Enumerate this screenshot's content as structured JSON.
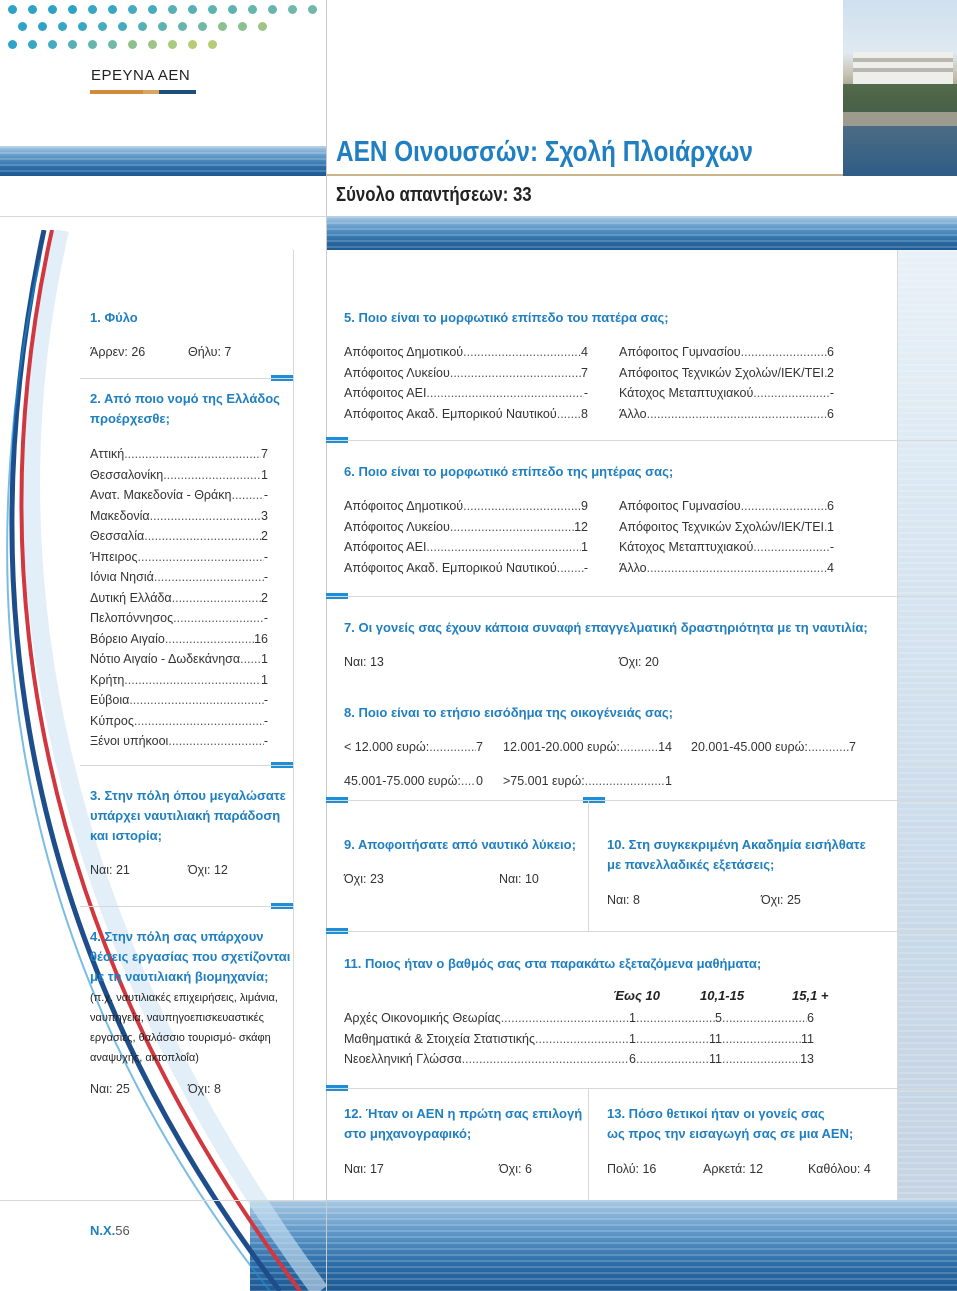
{
  "header": {
    "section_label": "ΕΡΕΥΝΑ ΑΕΝ",
    "title": "ΑΕΝ Οινουσσών: Σχολή Πλοιάρχων",
    "subtitle": "Σύνολο απαντήσεων: 33"
  },
  "footer": {
    "page_prefix": "N.",
    "page_mid": "X.",
    "page_num": "56"
  },
  "left": {
    "q1": {
      "title": "1. Φύλο",
      "male": "Άρρεν: 26",
      "female": "Θήλυ: 7"
    },
    "q2": {
      "title_line1": "2. Από ποιο νομό της Ελλάδος",
      "title_line2": "προέρχεσθε;",
      "rows": [
        {
          "label": "Αττική",
          "value": "7"
        },
        {
          "label": "Θεσσαλονίκη",
          "value": "1"
        },
        {
          "label": "Ανατ. Μακεδονία - Θράκη",
          "value": "-"
        },
        {
          "label": "Μακεδονία",
          "value": "3"
        },
        {
          "label": "Θεσσαλία",
          "value": "2"
        },
        {
          "label": "Ήπειρος",
          "value": "-"
        },
        {
          "label": "Ιόνια Νησιά",
          "value": "-"
        },
        {
          "label": "Δυτική Ελλάδα",
          "value": "2"
        },
        {
          "label": "Πελοπόννησος",
          "value": "-"
        },
        {
          "label": "Βόρειο Αιγαίο",
          "value": "16"
        },
        {
          "label": "Νότιο Αιγαίο - Δωδεκάνησα",
          "value": "1"
        },
        {
          "label": "Κρήτη",
          "value": "1"
        },
        {
          "label": "Εύβοια",
          "value": "-"
        },
        {
          "label": "Κύπρος",
          "value": "-"
        },
        {
          "label": "Ξένοι υπήκοοι",
          "value": "-"
        }
      ]
    },
    "q3": {
      "title_line1": "3. Στην πόλη όπου μεγαλώσατε",
      "title_line2": "υπάρχει ναυτιλιακή παράδοση",
      "title_line3": "και ιστορία;",
      "yes": "Ναι: 21",
      "no": "Όχι: 12"
    },
    "q4": {
      "title_line1": "4. Στην πόλη σας υπάρχουν",
      "title_line2": "θέσεις εργασίας που σχετίζονται",
      "title_line3": "με τη ναυτιλιακή βιομηχανία;",
      "note_line1": "(π.χ. ναυτιλιακές επιχειρήσεις, λιμάνια,",
      "note_line2": "ναυπηγεία, ναυπηγοεπισκευαστικές",
      "note_line3": "εργασίες, θαλάσσιο τουρισμό- σκάφη",
      "note_line4": "αναψυχής, ακτοπλοΐα)",
      "yes": "Ναι: 25",
      "no": "Όχι: 8"
    }
  },
  "right": {
    "q5": {
      "title": "5. Ποιο είναι το μορφωτικό επίπεδο του πατέρα σας;",
      "col1": [
        {
          "label": "Απόφοιτος Δημοτικού",
          "value": "4"
        },
        {
          "label": "Απόφοιτος Λυκείου",
          "value": "7"
        },
        {
          "label": "Απόφοιτος ΑΕΙ",
          "value": "-"
        },
        {
          "label": "Απόφοιτος Ακαδ. Εμπορικού Ναυτικού",
          "value": "8"
        }
      ],
      "col2": [
        {
          "label": "Απόφοιτος Γυμνασίου",
          "value": "6"
        },
        {
          "label": "Απόφοιτος Τεχνικών Σχολών/ΙΕΚ/ΤΕΙ",
          "value": "2"
        },
        {
          "label": "Κάτοχος Μεταπτυχιακού",
          "value": "-"
        },
        {
          "label": "Άλλο",
          "value": "6"
        }
      ]
    },
    "q6": {
      "title": "6. Ποιο είναι το μορφωτικό επίπεδο της μητέρας σας;",
      "col1": [
        {
          "label": "Απόφοιτος Δημοτικού",
          "value": "9"
        },
        {
          "label": "Απόφοιτος Λυκείου",
          "value": "12"
        },
        {
          "label": "Απόφοιτος ΑΕΙ",
          "value": "1"
        },
        {
          "label": "Απόφοιτος Ακαδ. Εμπορικού Ναυτικού",
          "value": "-"
        }
      ],
      "col2": [
        {
          "label": "Απόφοιτος Γυμνασίου",
          "value": "6"
        },
        {
          "label": "Απόφοιτος Τεχνικών Σχολών/ΙΕΚ/ΤΕΙ",
          "value": "1"
        },
        {
          "label": "Κάτοχος Μεταπτυχιακού",
          "value": "-"
        },
        {
          "label": "Άλλο",
          "value": "4"
        }
      ]
    },
    "q7": {
      "title": "7. Οι γονείς σας έχουν κάποια συναφή επαγγελματική δραστηριότητα με τη ναυτιλία;",
      "yes": "Ναι: 13",
      "no": "Όχι: 20"
    },
    "q8": {
      "title": "8. Ποιο είναι το ετήσιο εισόδημα της οικογένειάς σας;",
      "items": [
        {
          "label": "< 12.000 ευρώ:",
          "value": "7"
        },
        {
          "label": "12.001-20.000 ευρώ:",
          "value": "14"
        },
        {
          "label": "20.001-45.000 ευρώ:",
          "value": "7"
        },
        {
          "label": "45.001-75.000 ευρώ:",
          "value": "0"
        },
        {
          "label": ">75.001 ευρώ:",
          "value": "1"
        }
      ]
    },
    "q9": {
      "title": "9. Αποφοιτήσατε από ναυτικό λύκειο;",
      "no": "Όχι: 23",
      "yes": "Ναι: 10"
    },
    "q10": {
      "title_line1": "10. Στη συγκεκριμένη Ακαδημία εισήλθατε",
      "title_line2": "με πανελλαδικές εξετάσεις;",
      "yes": "Ναι: 8",
      "no": "Όχι: 25"
    },
    "q11": {
      "title": "11. Ποιος ήταν ο βαθμός σας στα παρακάτω εξεταζόμενα μαθήματα;",
      "headers": [
        "Έως 10",
        "10,1-15",
        "15,1 +"
      ],
      "rows": [
        {
          "label": "Αρχές Οικονομικής Θεωρίας",
          "v1": "1",
          "v2": "5",
          "v3": "6"
        },
        {
          "label": "Μαθηματικά & Στοιχεία Στατιστικής",
          "v1": "1",
          "v2": "11",
          "v3": "11"
        },
        {
          "label": "Νεοελληνική Γλώσσα",
          "v1": "6",
          "v2": "11",
          "v3": "13"
        }
      ]
    },
    "q12": {
      "title_line1": "12. Ήταν οι ΑΕΝ η πρώτη σας επιλογή",
      "title_line2": "στο μηχανογραφικό;",
      "yes": "Ναι: 17",
      "no": "Όχι: 6"
    },
    "q13": {
      "title_line1": "13. Πόσο θετικοί ήταν οι γονείς σας",
      "title_line2": "ως προς την εισαγωγή σας σε μια ΑΕΝ;",
      "a": "Πολύ: 16",
      "b": "Αρκετά: 12",
      "c": "Καθόλου: 4"
    }
  }
}
